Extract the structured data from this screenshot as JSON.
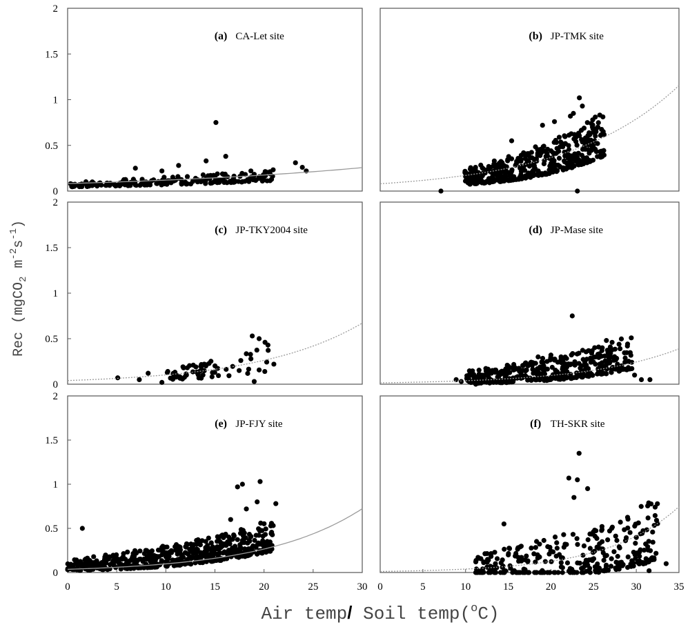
{
  "figure": {
    "ylabel": "Rec (mgCO",
    "ylabel_sub": "2",
    "ylabel_mid": " m",
    "ylabel_sup1": "-2",
    "ylabel_s": "s",
    "ylabel_sup2": "-1",
    "ylabel_close": ")",
    "xlabel_air": "Air temp",
    "xlabel_sep": "/",
    "xlabel_soil": " Soil temp(",
    "xlabel_deg": "o",
    "xlabel_unit": "C)"
  },
  "chart_data": [
    {
      "type": "scatter",
      "panel": "(a)",
      "title": "CA-Let site",
      "xlim": [
        0,
        30
      ],
      "ylim": [
        0,
        2
      ],
      "xticks": [],
      "yticks": [
        0,
        0.5,
        1,
        1.5,
        2
      ],
      "ytick_labels": [
        "0",
        "0.5",
        "1",
        "1.5",
        "2"
      ],
      "fit": {
        "a": 0.082,
        "b": 0.038,
        "style": "solid"
      },
      "cloud": {
        "n": 190,
        "x_range": [
          0,
          21
        ],
        "seed": 11,
        "base_a": 0.06,
        "base_b": 0.045,
        "spread": 0.13
      },
      "points": [
        [
          0.3,
          0.08
        ],
        [
          1.2,
          0.07
        ],
        [
          2.5,
          0.06
        ],
        [
          3.3,
          0.09
        ],
        [
          5.0,
          0.06
        ],
        [
          6.9,
          0.25
        ],
        [
          9.6,
          0.22
        ],
        [
          11.3,
          0.28
        ],
        [
          14.1,
          0.33
        ],
        [
          15.1,
          0.75
        ],
        [
          16.1,
          0.38
        ],
        [
          20.2,
          0.21
        ],
        [
          23.2,
          0.31
        ],
        [
          23.9,
          0.26
        ],
        [
          24.3,
          0.22
        ]
      ]
    },
    {
      "type": "scatter",
      "panel": "(b)",
      "title": "JP-TMK site",
      "xlim": [
        0,
        30
      ],
      "ylim": [
        0,
        2
      ],
      "xticks": [],
      "yticks": [],
      "fit": {
        "a": 0.08,
        "b": 0.089,
        "style": "dotted"
      },
      "cloud": {
        "n": 440,
        "x_range": [
          8.5,
          22.5
        ],
        "seed": 23,
        "base_a": 0.05,
        "base_b": 0.105,
        "spread": 0.48
      },
      "points": [
        [
          6.1,
          0.0
        ],
        [
          16.3,
          0.72
        ],
        [
          17.5,
          0.76
        ],
        [
          19.1,
          0.82
        ],
        [
          19.4,
          0.85
        ],
        [
          20.0,
          1.02
        ],
        [
          20.3,
          0.93
        ],
        [
          21.6,
          0.81
        ],
        [
          19.8,
          0.0
        ],
        [
          13.2,
          0.55
        ]
      ]
    },
    {
      "type": "scatter",
      "panel": "(c)",
      "title": "JP-TKY2004 site",
      "xlim": [
        0,
        30
      ],
      "ylim": [
        0,
        2
      ],
      "xticks": [],
      "yticks": [
        0,
        0.5,
        1,
        1.5,
        2
      ],
      "ytick_labels": [
        "0",
        "0.5",
        "1",
        "1.5",
        "2"
      ],
      "fit": {
        "a": 0.04,
        "b": 0.094,
        "style": "dotted"
      },
      "cloud": {
        "n": 60,
        "x_range": [
          10,
          21
        ],
        "seed": 37,
        "base_a": 0.03,
        "base_b": 0.1,
        "spread": 0.3
      },
      "points": [
        [
          5.1,
          0.07
        ],
        [
          7.3,
          0.05
        ],
        [
          8.2,
          0.12
        ],
        [
          9.6,
          0.02
        ],
        [
          10.2,
          0.14
        ],
        [
          12.1,
          0.1
        ],
        [
          18.8,
          0.53
        ],
        [
          19.5,
          0.5
        ],
        [
          20.1,
          0.46
        ],
        [
          21.0,
          0.22
        ],
        [
          19.0,
          0.03
        ]
      ]
    },
    {
      "type": "scatter",
      "panel": "(d)",
      "title": "JP-Mase site",
      "xlim": [
        0,
        35
      ],
      "ylim": [
        0,
        2
      ],
      "xticks": [],
      "yticks": [],
      "fit": {
        "a": 0.015,
        "b": 0.093,
        "style": "dotted"
      },
      "cloud": {
        "n": 430,
        "x_range": [
          10,
          29.5
        ],
        "seed": 53,
        "base_a": 0.02,
        "base_b": 0.09,
        "spread": 0.38
      },
      "points": [
        [
          8.9,
          0.05
        ],
        [
          9.5,
          0.03
        ],
        [
          11.2,
          0.0
        ],
        [
          22.5,
          0.75
        ],
        [
          26.5,
          0.48
        ],
        [
          28.1,
          0.39
        ],
        [
          29.8,
          0.1
        ],
        [
          30.6,
          0.05
        ],
        [
          31.6,
          0.05
        ],
        [
          20.0,
          0.32
        ],
        [
          18.5,
          0.3
        ]
      ]
    },
    {
      "type": "scatter",
      "panel": "(e)",
      "title": "JP-FJY site",
      "xlim": [
        0,
        30
      ],
      "ylim": [
        0,
        2
      ],
      "xticks": [
        0,
        5,
        10,
        15,
        20,
        25,
        30
      ],
      "xtick_labels": [
        "0",
        "5",
        "10",
        "15",
        "20",
        "25",
        "30"
      ],
      "yticks": [
        0,
        0.5,
        1,
        1.5,
        2
      ],
      "ytick_labels": [
        "0",
        "0.5",
        "1",
        "1.5",
        "2"
      ],
      "fit": {
        "a": 0.036,
        "b": 0.1,
        "style": "solid"
      },
      "cloud": {
        "n": 520,
        "x_range": [
          0,
          21
        ],
        "seed": 71,
        "base_a": 0.06,
        "base_b": 0.085,
        "spread": 0.36
      },
      "points": [
        [
          1.5,
          0.5
        ],
        [
          17.3,
          0.97
        ],
        [
          17.8,
          1.0
        ],
        [
          19.6,
          1.03
        ],
        [
          19.3,
          0.8
        ],
        [
          21.2,
          0.78
        ],
        [
          18.2,
          0.72
        ],
        [
          16.6,
          0.6
        ],
        [
          20.5,
          0.26
        ]
      ]
    },
    {
      "type": "scatter",
      "panel": "(f)",
      "title": "TH-SKR site",
      "xlim": [
        0,
        35
      ],
      "ylim": [
        0,
        2
      ],
      "xticks": [
        0,
        5,
        10,
        15,
        20,
        25,
        30,
        35
      ],
      "xtick_labels": [
        "0",
        "5",
        "10",
        "15",
        "20",
        "25",
        "30",
        "35"
      ],
      "yticks": [],
      "fit": {
        "a": 0.012,
        "b": 0.118,
        "style": "dotted"
      },
      "cloud": {
        "n": 300,
        "x_range": [
          11,
          32.5
        ],
        "seed": 97,
        "base_a": 0.01,
        "base_b": 0.11,
        "spread": 0.7
      },
      "points": [
        [
          23.3,
          1.35
        ],
        [
          22.1,
          1.07
        ],
        [
          23.1,
          1.05
        ],
        [
          24.3,
          0.95
        ],
        [
          22.7,
          0.85
        ],
        [
          11.2,
          0.12
        ],
        [
          12.0,
          0.04
        ],
        [
          13.5,
          0.1
        ],
        [
          14.5,
          0.55
        ],
        [
          33.5,
          0.1
        ],
        [
          31.5,
          0.02
        ],
        [
          29.9,
          0.16
        ]
      ]
    }
  ]
}
